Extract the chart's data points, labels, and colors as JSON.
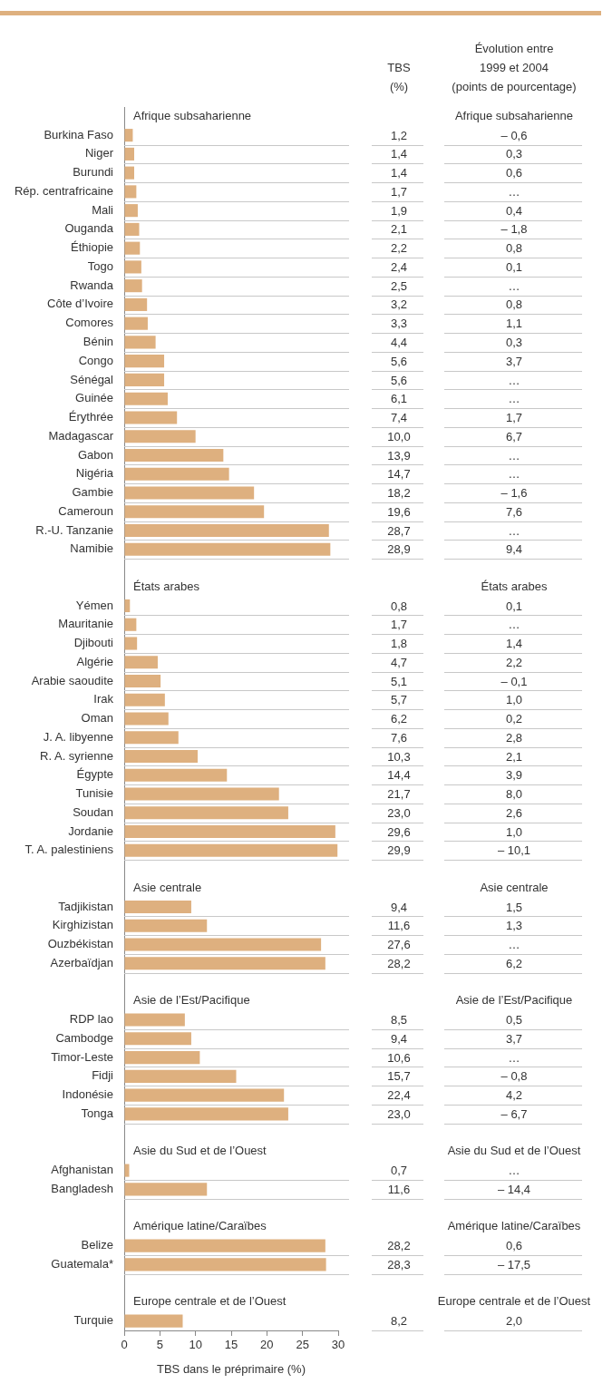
{
  "chart_data": {
    "type": "bar",
    "orientation": "horizontal",
    "xlabel": "TBS dans le préprimaire (%)",
    "xlim": [
      0,
      30
    ],
    "xticks": [
      0,
      5,
      10,
      15,
      20,
      25,
      30
    ],
    "legend": false,
    "categories": [
      "Afrique subsaharienne",
      "Burkina Faso",
      "Niger",
      "Burundi",
      "Rép. centrafricaine",
      "Mali",
      "Ouganda",
      "Éthiopie",
      "Togo",
      "Rwanda",
      "Côte d’Ivoire",
      "Comores",
      "Bénin",
      "Congo",
      "Sénégal",
      "Guinée",
      "Érythrée",
      "Madagascar",
      "Gabon",
      "Nigéria",
      "Gambie",
      "Cameroun",
      "R.-U. Tanzanie",
      "Namibie",
      null,
      "États arabes",
      "Yémen",
      "Mauritanie",
      "Djibouti",
      "Algérie",
      "Arabie saoudite",
      "Irak",
      "Oman",
      "J. A. libyenne",
      "R. A. syrienne",
      "Égypte",
      "Tunisie",
      "Soudan",
      "Jordanie",
      "T. A. palestiniens",
      null,
      "Asie centrale",
      "Tadjikistan",
      "Kirghizistan",
      "Ouzbékistan",
      "Azerbaïdjan",
      null,
      "Asie de l’Est/Pacifique",
      "RDP lao",
      "Cambodge",
      "Timor-Leste",
      "Fidji",
      "Indonésie",
      "Tonga",
      null,
      "Asie du Sud et de l’Ouest",
      "Afghanistan",
      "Bangladesh",
      null,
      "Amérique latine/Caraïbes",
      "Belize",
      "Guatemala*",
      null,
      "Europe centrale et de l’Ouest",
      "Turquie"
    ],
    "series": [
      {
        "name": "TBS (%)",
        "color": "#deb07f",
        "values": [
          null,
          1.2,
          1.4,
          1.4,
          1.7,
          1.9,
          2.1,
          2.2,
          2.4,
          2.5,
          3.2,
          3.3,
          4.4,
          5.6,
          5.6,
          6.1,
          7.4,
          10.0,
          13.9,
          14.7,
          18.2,
          19.6,
          28.7,
          28.9,
          null,
          null,
          0.8,
          1.7,
          1.8,
          4.7,
          5.1,
          5.7,
          6.2,
          7.6,
          10.3,
          14.4,
          21.7,
          23.0,
          29.6,
          29.9,
          null,
          null,
          9.4,
          11.6,
          27.6,
          28.2,
          null,
          null,
          8.5,
          9.4,
          10.6,
          15.7,
          22.4,
          23.0,
          null,
          null,
          0.7,
          11.6,
          null,
          null,
          28.2,
          28.3,
          null,
          null,
          8.2
        ],
        "value_labels": [
          null,
          "1,2",
          "1,4",
          "1,4",
          "1,7",
          "1,9",
          "2,1",
          "2,2",
          "2,4",
          "2,5",
          "3,2",
          "3,3",
          "4,4",
          "5,6",
          "5,6",
          "6,1",
          "7,4",
          "10,0",
          "13,9",
          "14,7",
          "18,2",
          "19,6",
          "28,7",
          "28,9",
          null,
          null,
          "0,8",
          "1,7",
          "1,8",
          "4,7",
          "5,1",
          "5,7",
          "6,2",
          "7,6",
          "10,3",
          "14,4",
          "21,7",
          "23,0",
          "29,6",
          "29,9",
          null,
          null,
          "9,4",
          "11,6",
          "27,6",
          "28,2",
          null,
          null,
          "8,5",
          "9,4",
          "10,6",
          "15,7",
          "22,4",
          "23,0",
          null,
          null,
          "0,7",
          "11,6",
          null,
          null,
          "28,2",
          "28,3",
          null,
          null,
          "8,2"
        ]
      },
      {
        "name": "Évolution entre 1999 et 2004 (points de pourcentage)",
        "type": "other",
        "values": [
          null,
          null,
          null,
          null,
          null,
          null,
          null,
          null,
          null,
          null,
          null,
          null,
          null,
          null,
          null,
          null,
          null,
          null,
          null,
          null,
          null,
          null,
          null,
          null,
          null,
          null,
          null,
          null,
          null,
          null,
          null,
          null,
          null,
          null,
          null,
          null,
          null,
          null,
          null,
          null,
          null,
          null,
          null,
          null,
          null,
          null,
          null,
          null,
          null,
          null,
          null,
          null,
          null,
          null,
          null,
          null,
          null,
          null,
          null,
          null,
          null,
          null,
          null,
          null,
          null
        ],
        "value_labels": [
          null,
          "– 0,6",
          "0,3",
          "0,6",
          "…",
          "0,4",
          "– 1,8",
          "0,8",
          "0,1",
          "…",
          "0,8",
          "1,1",
          "0,3",
          "3,7",
          "…",
          "…",
          "1,7",
          "6,7",
          "…",
          "…",
          "– 1,6",
          "7,6",
          "…",
          "9,4",
          null,
          null,
          "0,1",
          "…",
          "1,4",
          "2,2",
          "– 0,1",
          "1,0",
          "0,2",
          "2,8",
          "2,1",
          "3,9",
          "8,0",
          "2,6",
          "1,0",
          "– 10,1",
          null,
          null,
          "1,5",
          "1,3",
          "…",
          "6,2",
          null,
          null,
          "0,5",
          "3,7",
          "…",
          "– 0,8",
          "4,2",
          "– 6,7",
          null,
          null,
          "…",
          "– 14,4",
          null,
          null,
          "0,6",
          "– 17,5",
          null,
          null,
          "2,0"
        ]
      }
    ]
  }
}
